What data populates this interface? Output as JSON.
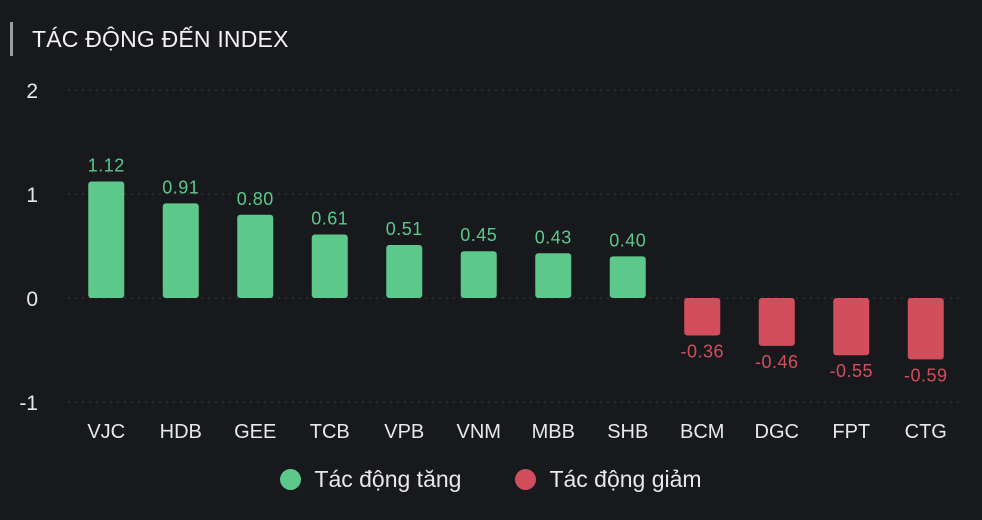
{
  "header": {
    "title": "TÁC ĐỘNG ĐẾN INDEX"
  },
  "colors": {
    "positive": "#5cc98a",
    "negative": "#d24e5c",
    "grid": "#3a3b40",
    "axis_text": "#e8e8ea"
  },
  "legend": [
    {
      "label": "Tác động tăng",
      "color": "#5cc98a"
    },
    {
      "label": "Tác động giảm",
      "color": "#d24e5c"
    }
  ],
  "chart_data": {
    "type": "bar",
    "title": "",
    "categories": [
      "VJC",
      "HDB",
      "GEE",
      "TCB",
      "VPB",
      "VNM",
      "MBB",
      "SHB",
      "BCM",
      "DGC",
      "FPT",
      "CTG"
    ],
    "values": [
      1.12,
      0.91,
      0.8,
      0.61,
      0.51,
      0.45,
      0.43,
      0.4,
      -0.36,
      -0.46,
      -0.55,
      -0.59
    ],
    "labels": [
      "1.12",
      "0.91",
      "0.80",
      "0.61",
      "0.51",
      "0.45",
      "0.43",
      "0.40",
      "-0.36",
      "-0.46",
      "-0.55",
      "-0.59"
    ],
    "ylim": [
      -1,
      2
    ],
    "yticks": [
      "2",
      "1",
      "0",
      "-1"
    ],
    "grid": true,
    "legend_position": "bottom"
  }
}
